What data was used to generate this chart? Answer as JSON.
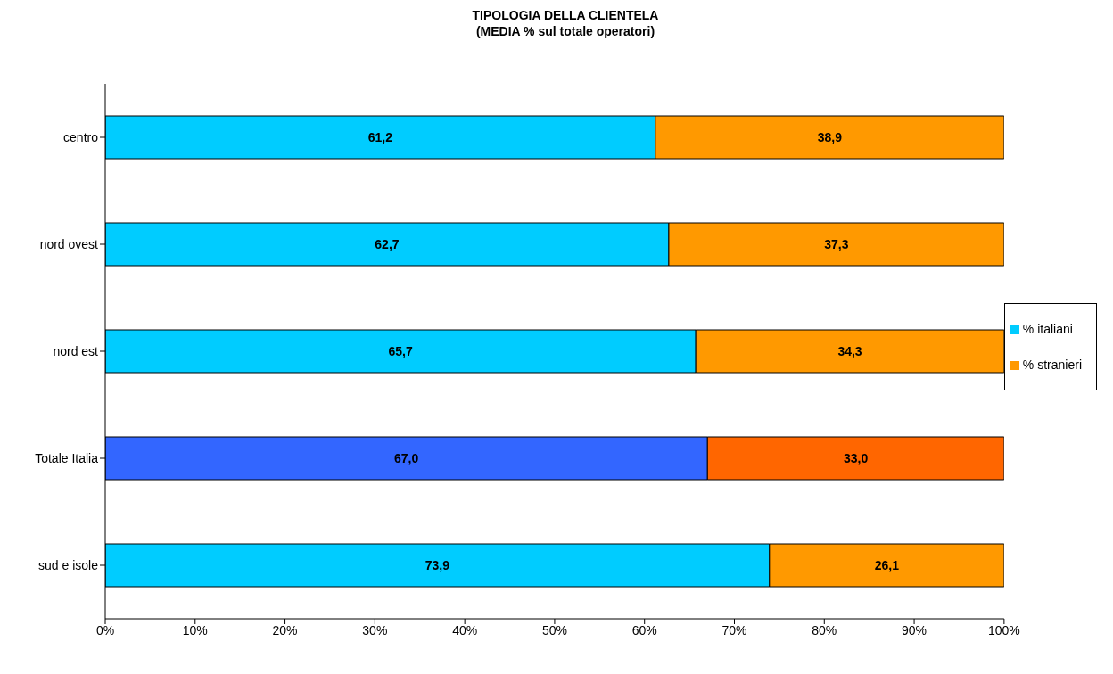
{
  "chart_data": {
    "type": "bar",
    "title": "TIPOLOGIA DELLA CLIENTELA\n(MEDIA % sul totale operatori)",
    "orientation": "horizontal",
    "stacked": true,
    "categories": [
      "centro",
      "nord ovest",
      "nord est",
      "Totale Italia",
      "sud e isole"
    ],
    "series": [
      {
        "name": "% italiani",
        "color": "#00ccff",
        "colors": [
          "#00ccff",
          "#00ccff",
          "#00ccff",
          "#3366ff",
          "#00ccff"
        ],
        "values": [
          61.2,
          62.7,
          65.7,
          67.0,
          73.9
        ],
        "value_labels": [
          "61,2",
          "62,7",
          "65,7",
          "67,0",
          "73,9"
        ]
      },
      {
        "name": "% stranieri",
        "color": "#ff9900",
        "colors": [
          "#ff9900",
          "#ff9900",
          "#ff9900",
          "#ff6600",
          "#ff9900"
        ],
        "values": [
          38.9,
          37.3,
          34.3,
          33.0,
          26.1
        ],
        "value_labels": [
          "38,9",
          "37,3",
          "34,3",
          "33,0",
          "26,1"
        ]
      }
    ],
    "xlim": [
      0,
      100
    ],
    "xticks": [
      {
        "value": 0,
        "label": "0%"
      },
      {
        "value": 10,
        "label": "10%"
      },
      {
        "value": 20,
        "label": "20%"
      },
      {
        "value": 30,
        "label": "30%"
      },
      {
        "value": 40,
        "label": "40%"
      },
      {
        "value": 50,
        "label": "50%"
      },
      {
        "value": 60,
        "label": "60%"
      },
      {
        "value": 70,
        "label": "70%"
      },
      {
        "value": 80,
        "label": "80%"
      },
      {
        "value": 90,
        "label": "90%"
      },
      {
        "value": 100,
        "label": "100%"
      }
    ],
    "grid": false,
    "legend": "right"
  }
}
